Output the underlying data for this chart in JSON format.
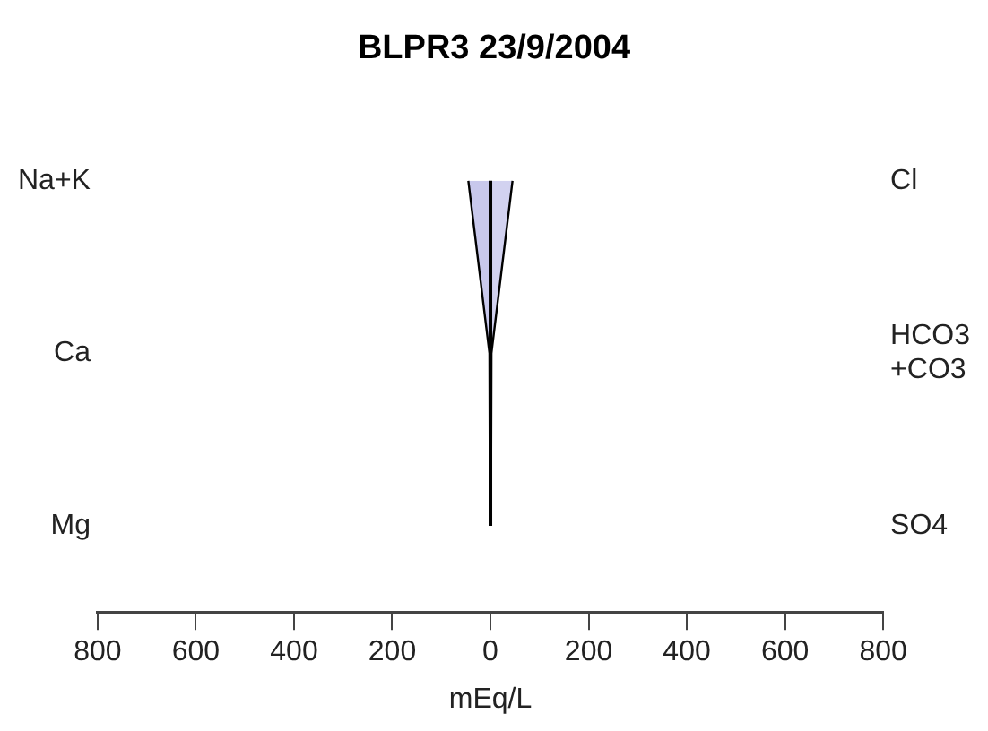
{
  "chart_data": {
    "type": "area",
    "orientation": "horizontal",
    "title": "BLPR3 23/9/2004",
    "xlabel": "mEq/L",
    "categories": [
      "Na+K",
      "Ca",
      "Mg"
    ],
    "y2_categories": [
      "Cl",
      "HCO3\n+CO3",
      "SO4"
    ],
    "series": [
      {
        "color": "#c8c8ec",
        "values": [
          -45,
          -2,
          -1
        ]
      },
      {
        "color": "#d2d2f0",
        "values": [
          45,
          2,
          1
        ]
      }
    ],
    "xlim": [
      -800,
      800
    ],
    "xticks": [
      {
        "value": -800,
        "label": "800"
      },
      {
        "value": -600,
        "label": "600"
      },
      {
        "value": -400,
        "label": "400"
      },
      {
        "value": -200,
        "label": "200"
      },
      0,
      200,
      400,
      600,
      800
    ],
    "ref_lines": [
      {
        "axis": "x",
        "value": 0,
        "color": "#000000"
      }
    ],
    "grid": false,
    "legend": false
  }
}
